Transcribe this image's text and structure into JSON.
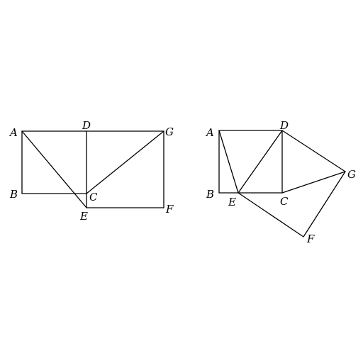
{
  "figures": [
    {
      "points": {
        "A": "A",
        "B": "B",
        "C": "C",
        "D": "D",
        "E": "E",
        "F": "F",
        "G": "G"
      },
      "segments": [
        [
          "A",
          "G"
        ],
        [
          "A",
          "B"
        ],
        [
          "B",
          "C"
        ],
        [
          "D",
          "E"
        ],
        [
          "A",
          "E"
        ],
        [
          "E",
          "F"
        ],
        [
          "G",
          "F"
        ],
        [
          "C",
          "G"
        ]
      ]
    },
    {
      "points": {
        "A": "A",
        "B": "B",
        "C": "C",
        "D": "D",
        "E": "E",
        "F": "F",
        "G": "G"
      },
      "segments": [
        [
          "A",
          "D"
        ],
        [
          "A",
          "B"
        ],
        [
          "B",
          "C"
        ],
        [
          "D",
          "C"
        ],
        [
          "A",
          "E"
        ],
        [
          "E",
          "D"
        ],
        [
          "D",
          "G"
        ],
        [
          "C",
          "G"
        ],
        [
          "E",
          "F"
        ],
        [
          "F",
          "G"
        ]
      ]
    }
  ],
  "colors": {
    "line": "#000000",
    "background": "#ffffff"
  }
}
